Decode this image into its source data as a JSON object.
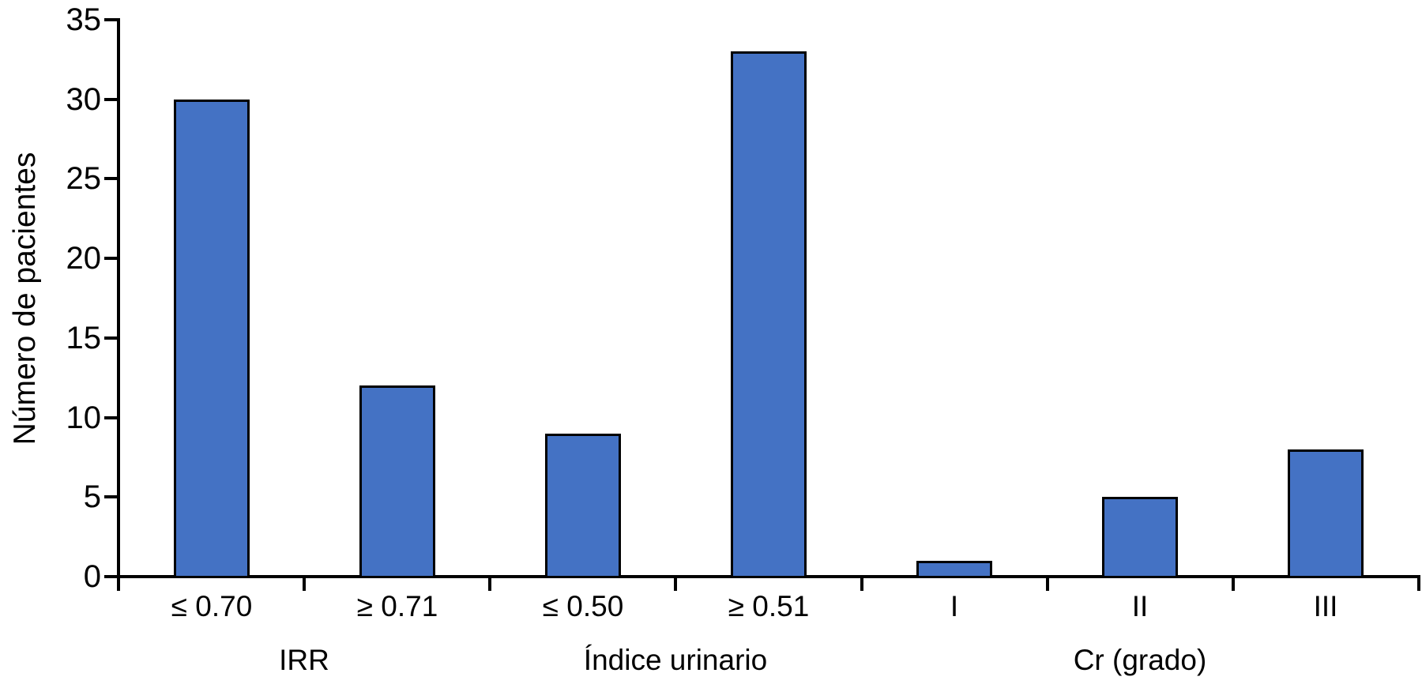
{
  "chart_data": {
    "type": "bar",
    "title": "",
    "xlabel": "",
    "ylabel": "Número de pacientes",
    "ylim": [
      0,
      35
    ],
    "yticks": [
      0,
      5,
      10,
      15,
      20,
      25,
      30,
      35
    ],
    "categories": [
      "≤ 0.70",
      "≥ 0.71",
      "≤ 0.50",
      "≥ 0.51",
      "I",
      "II",
      "III"
    ],
    "values": [
      30,
      12,
      9,
      33,
      1,
      5,
      8
    ],
    "series": [
      {
        "name": "Número de pacientes",
        "values": [
          30,
          12,
          9,
          33,
          1,
          5,
          8
        ]
      }
    ],
    "groups": [
      {
        "label": "IRR",
        "span": [
          0,
          1
        ]
      },
      {
        "label": "Índice urinario",
        "span": [
          2,
          3
        ]
      },
      {
        "label": "Cr (grado)",
        "span": [
          4,
          6
        ]
      }
    ],
    "legend": null,
    "grid": false,
    "style": {
      "bar_fill": "#4472C4",
      "bar_border": "#000000",
      "axis_color": "#000000",
      "text_color": "#000000",
      "background": "#ffffff"
    }
  }
}
